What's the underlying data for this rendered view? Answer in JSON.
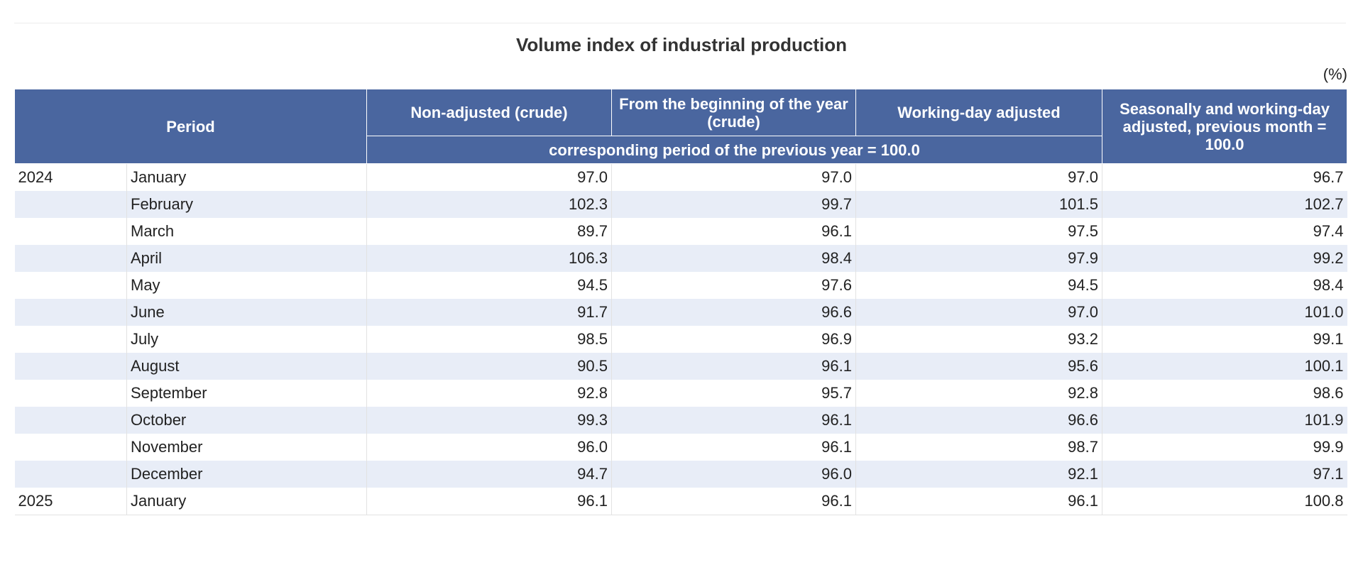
{
  "title": "Volume index of industrial production",
  "unit": "(%)",
  "chart_data": {
    "type": "table",
    "title": "Volume index of industrial production",
    "unit": "(%)",
    "headers": {
      "period": "Period",
      "non_adjusted": "Non-adjusted (crude)",
      "from_beginning": "From the beginning of the year (crude)",
      "working_day": "Working-day adjusted",
      "seasonal": "Seasonally and working-day adjusted, previous month = 100.0",
      "base_note": "corresponding period of the previous year = 100.0"
    },
    "rows": [
      {
        "year": "2024",
        "month": "January",
        "non_adjusted": "97.0",
        "from_beginning": "97.0",
        "working_day": "97.0",
        "seasonal": "96.7"
      },
      {
        "year": "",
        "month": "February",
        "non_adjusted": "102.3",
        "from_beginning": "99.7",
        "working_day": "101.5",
        "seasonal": "102.7"
      },
      {
        "year": "",
        "month": "March",
        "non_adjusted": "89.7",
        "from_beginning": "96.1",
        "working_day": "97.5",
        "seasonal": "97.4"
      },
      {
        "year": "",
        "month": "April",
        "non_adjusted": "106.3",
        "from_beginning": "98.4",
        "working_day": "97.9",
        "seasonal": "99.2"
      },
      {
        "year": "",
        "month": "May",
        "non_adjusted": "94.5",
        "from_beginning": "97.6",
        "working_day": "94.5",
        "seasonal": "98.4"
      },
      {
        "year": "",
        "month": "June",
        "non_adjusted": "91.7",
        "from_beginning": "96.6",
        "working_day": "97.0",
        "seasonal": "101.0"
      },
      {
        "year": "",
        "month": "July",
        "non_adjusted": "98.5",
        "from_beginning": "96.9",
        "working_day": "93.2",
        "seasonal": "99.1"
      },
      {
        "year": "",
        "month": "August",
        "non_adjusted": "90.5",
        "from_beginning": "96.1",
        "working_day": "95.6",
        "seasonal": "100.1"
      },
      {
        "year": "",
        "month": "September",
        "non_adjusted": "92.8",
        "from_beginning": "95.7",
        "working_day": "92.8",
        "seasonal": "98.6"
      },
      {
        "year": "",
        "month": "October",
        "non_adjusted": "99.3",
        "from_beginning": "96.1",
        "working_day": "96.6",
        "seasonal": "101.9"
      },
      {
        "year": "",
        "month": "November",
        "non_adjusted": "96.0",
        "from_beginning": "96.1",
        "working_day": "98.7",
        "seasonal": "99.9"
      },
      {
        "year": "",
        "month": "December",
        "non_adjusted": "94.7",
        "from_beginning": "96.0",
        "working_day": "92.1",
        "seasonal": "97.1"
      },
      {
        "year": "2025",
        "month": "January",
        "non_adjusted": "96.1",
        "from_beginning": "96.1",
        "working_day": "96.1",
        "seasonal": "100.8"
      }
    ]
  }
}
